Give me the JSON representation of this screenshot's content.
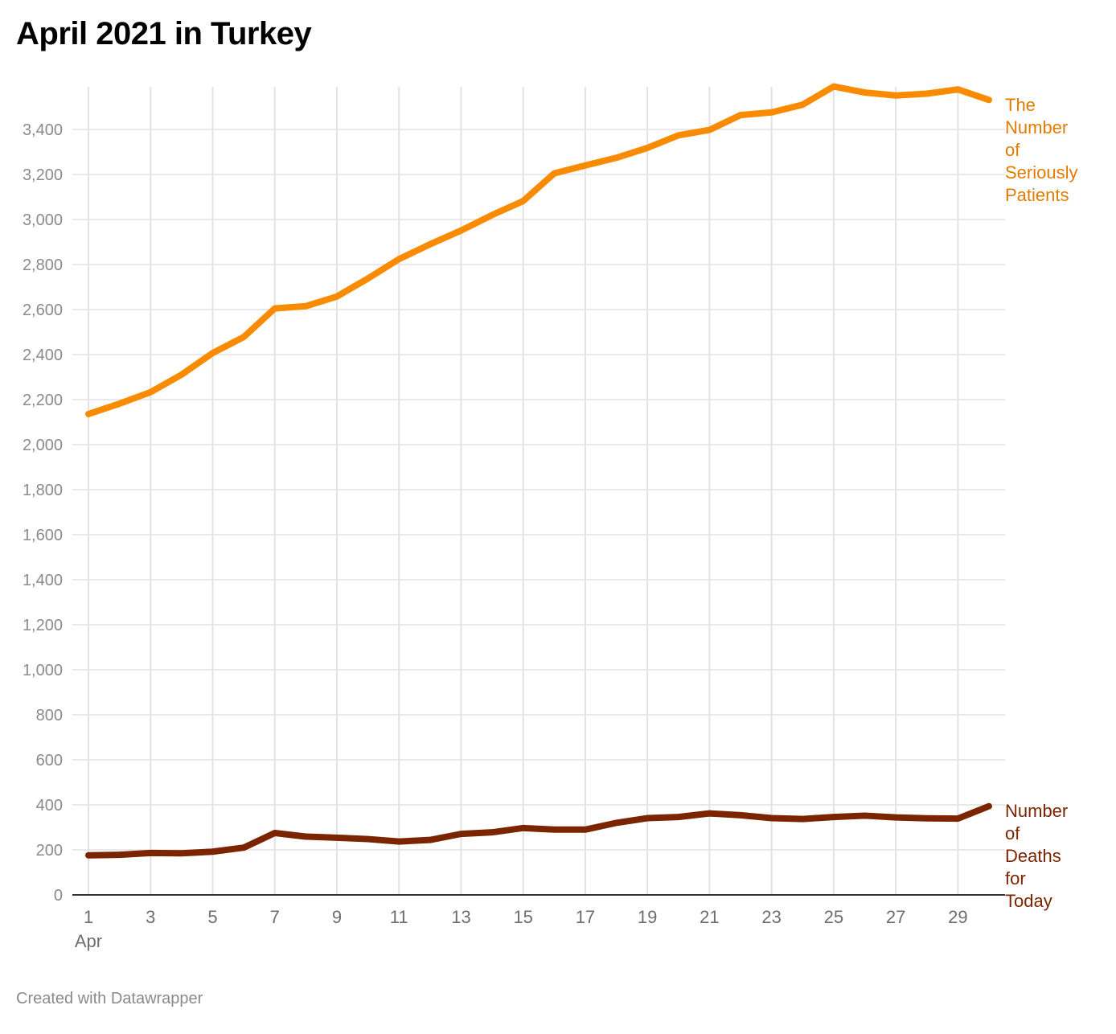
{
  "title": "April 2021 in Turkey",
  "footer": "Created with Datawrapper",
  "chart_data": {
    "type": "line",
    "title": "April 2021 in Turkey",
    "xlabel": "",
    "ylabel": "",
    "x": [
      1,
      2,
      3,
      4,
      5,
      6,
      7,
      8,
      9,
      10,
      11,
      12,
      13,
      14,
      15,
      16,
      17,
      18,
      19,
      20,
      21,
      22,
      23,
      24,
      25,
      26,
      27,
      28,
      29,
      30
    ],
    "x_ticks": [
      "1",
      "3",
      "5",
      "7",
      "9",
      "11",
      "13",
      "15",
      "17",
      "19",
      "21",
      "23",
      "25",
      "27",
      "29"
    ],
    "x_tick_values": [
      1,
      3,
      5,
      7,
      9,
      11,
      13,
      15,
      17,
      19,
      21,
      23,
      25,
      27,
      29
    ],
    "x_sublabel": "Apr",
    "y_ticks": [
      "0",
      "200",
      "400",
      "600",
      "800",
      "1,000",
      "1,200",
      "1,400",
      "1,600",
      "1,800",
      "2,000",
      "2,200",
      "2,400",
      "2,600",
      "2,800",
      "3,000",
      "3,200",
      "3,400"
    ],
    "y_tick_values": [
      0,
      200,
      400,
      600,
      800,
      1000,
      1200,
      1400,
      1600,
      1800,
      2000,
      2200,
      2400,
      2600,
      2800,
      3000,
      3200,
      3400
    ],
    "ylim": [
      0,
      3600
    ],
    "xlim": [
      1,
      30
    ],
    "grid": true,
    "series": [
      {
        "name": "The Number of Seriously Patients",
        "label_lines": [
          "The",
          "Number",
          "of",
          "Seriously",
          "Patients"
        ],
        "color": "#f98b00",
        "label_color": "#e07d00",
        "values": [
          2136,
          2182,
          2233,
          2311,
          2407,
          2478,
          2605,
          2615,
          2658,
          2738,
          2824,
          2890,
          2951,
          3020,
          3082,
          3205,
          3240,
          3274,
          3318,
          3374,
          3398,
          3464,
          3476,
          3510,
          3591,
          3564,
          3551,
          3559,
          3578,
          3531
        ]
      },
      {
        "name": "Number of Deaths for Today",
        "label_lines": [
          "Number",
          "of",
          "Deaths",
          "for",
          "Today"
        ],
        "color": "#7b2500",
        "label_color": "#7b2500",
        "values": [
          176,
          178,
          186,
          185,
          192,
          210,
          275,
          259,
          254,
          248,
          237,
          244,
          271,
          278,
          297,
          290,
          290,
          320,
          341,
          346,
          362,
          354,
          341,
          337,
          346,
          352,
          344,
          340,
          339,
          394
        ]
      }
    ]
  }
}
